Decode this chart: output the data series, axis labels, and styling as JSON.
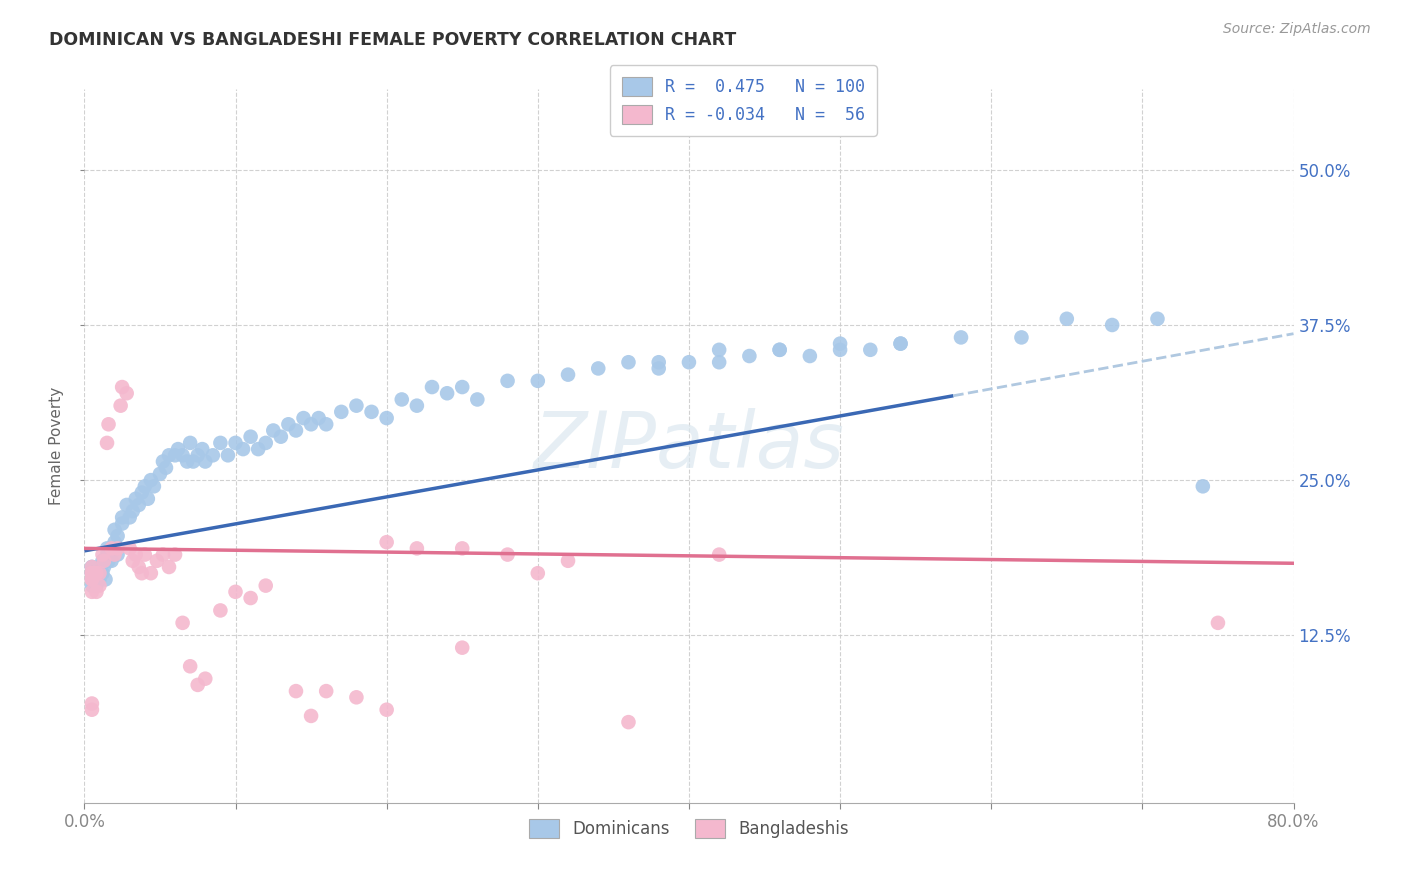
{
  "title": "DOMINICAN VS BANGLADESHI FEMALE POVERTY CORRELATION CHART",
  "source": "Source: ZipAtlas.com",
  "ylabel": "Female Poverty",
  "ytick_labels": [
    "12.5%",
    "25.0%",
    "37.5%",
    "50.0%"
  ],
  "ytick_values": [
    0.125,
    0.25,
    0.375,
    0.5
  ],
  "xlim": [
    0.0,
    0.8
  ],
  "ylim": [
    -0.01,
    0.565
  ],
  "watermark": "ZIPatlas",
  "dominican_color": "#a8c8e8",
  "bangladeshi_color": "#f4b8ce",
  "trend_dominican_color": "#3a68b4",
  "trend_bangladeshi_color": "#e07090",
  "trend_dom_x0": 0.0,
  "trend_dom_y0": 0.193,
  "trend_dom_x1": 0.575,
  "trend_dom_y1": 0.318,
  "trend_dom_dash_x0": 0.575,
  "trend_dom_dash_y0": 0.318,
  "trend_dom_dash_x1": 0.8,
  "trend_dom_dash_y1": 0.368,
  "trend_ban_x0": 0.0,
  "trend_ban_y0": 0.195,
  "trend_ban_x1": 0.8,
  "trend_ban_y1": 0.183,
  "dominican_scatter_x": [
    0.005,
    0.005,
    0.005,
    0.005,
    0.005,
    0.005,
    0.008,
    0.008,
    0.008,
    0.01,
    0.01,
    0.012,
    0.012,
    0.013,
    0.014,
    0.015,
    0.015,
    0.016,
    0.018,
    0.018,
    0.02,
    0.02,
    0.022,
    0.022,
    0.025,
    0.025,
    0.028,
    0.03,
    0.032,
    0.034,
    0.036,
    0.038,
    0.04,
    0.042,
    0.044,
    0.046,
    0.05,
    0.052,
    0.054,
    0.056,
    0.06,
    0.062,
    0.065,
    0.068,
    0.07,
    0.072,
    0.075,
    0.078,
    0.08,
    0.085,
    0.09,
    0.095,
    0.1,
    0.105,
    0.11,
    0.115,
    0.12,
    0.125,
    0.13,
    0.135,
    0.14,
    0.145,
    0.15,
    0.155,
    0.16,
    0.17,
    0.18,
    0.19,
    0.2,
    0.21,
    0.22,
    0.23,
    0.24,
    0.25,
    0.26,
    0.28,
    0.3,
    0.32,
    0.34,
    0.36,
    0.38,
    0.4,
    0.42,
    0.44,
    0.46,
    0.48,
    0.5,
    0.52,
    0.54,
    0.38,
    0.42,
    0.46,
    0.5,
    0.54,
    0.58,
    0.62,
    0.65,
    0.68,
    0.71,
    0.74
  ],
  "dominican_scatter_y": [
    0.18,
    0.175,
    0.17,
    0.165,
    0.18,
    0.175,
    0.17,
    0.175,
    0.165,
    0.17,
    0.18,
    0.175,
    0.185,
    0.18,
    0.17,
    0.19,
    0.195,
    0.185,
    0.195,
    0.185,
    0.2,
    0.21,
    0.205,
    0.19,
    0.22,
    0.215,
    0.23,
    0.22,
    0.225,
    0.235,
    0.23,
    0.24,
    0.245,
    0.235,
    0.25,
    0.245,
    0.255,
    0.265,
    0.26,
    0.27,
    0.27,
    0.275,
    0.27,
    0.265,
    0.28,
    0.265,
    0.27,
    0.275,
    0.265,
    0.27,
    0.28,
    0.27,
    0.28,
    0.275,
    0.285,
    0.275,
    0.28,
    0.29,
    0.285,
    0.295,
    0.29,
    0.3,
    0.295,
    0.3,
    0.295,
    0.305,
    0.31,
    0.305,
    0.3,
    0.315,
    0.31,
    0.325,
    0.32,
    0.325,
    0.315,
    0.33,
    0.33,
    0.335,
    0.34,
    0.345,
    0.34,
    0.345,
    0.345,
    0.35,
    0.355,
    0.35,
    0.355,
    0.355,
    0.36,
    0.345,
    0.355,
    0.355,
    0.36,
    0.36,
    0.365,
    0.365,
    0.38,
    0.375,
    0.38,
    0.245
  ],
  "bangladeshi_scatter_x": [
    0.005,
    0.005,
    0.005,
    0.005,
    0.005,
    0.005,
    0.005,
    0.005,
    0.008,
    0.008,
    0.01,
    0.01,
    0.012,
    0.013,
    0.015,
    0.016,
    0.018,
    0.02,
    0.022,
    0.024,
    0.025,
    0.028,
    0.03,
    0.032,
    0.034,
    0.036,
    0.038,
    0.04,
    0.044,
    0.048,
    0.052,
    0.056,
    0.06,
    0.065,
    0.07,
    0.075,
    0.08,
    0.09,
    0.1,
    0.11,
    0.12,
    0.14,
    0.16,
    0.18,
    0.2,
    0.22,
    0.25,
    0.28,
    0.32,
    0.36,
    0.42,
    0.3,
    0.2,
    0.15,
    0.25,
    0.75
  ],
  "bangladeshi_scatter_y": [
    0.18,
    0.175,
    0.17,
    0.16,
    0.17,
    0.175,
    0.065,
    0.07,
    0.175,
    0.16,
    0.175,
    0.165,
    0.19,
    0.185,
    0.28,
    0.295,
    0.195,
    0.19,
    0.195,
    0.31,
    0.325,
    0.32,
    0.195,
    0.185,
    0.19,
    0.18,
    0.175,
    0.19,
    0.175,
    0.185,
    0.19,
    0.18,
    0.19,
    0.135,
    0.1,
    0.085,
    0.09,
    0.145,
    0.16,
    0.155,
    0.165,
    0.08,
    0.08,
    0.075,
    0.2,
    0.195,
    0.195,
    0.19,
    0.185,
    0.055,
    0.19,
    0.175,
    0.065,
    0.06,
    0.115,
    0.135
  ]
}
